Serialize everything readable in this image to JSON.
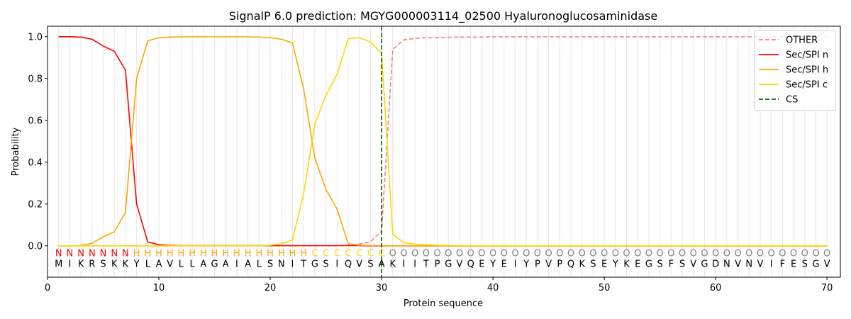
{
  "chart_data": {
    "type": "line",
    "title": "SignalP 6.0 prediction: MGYG000003114_02500 Hyaluronoglucosaminidase",
    "xlabel": "Protein sequence",
    "ylabel": "Probability",
    "xlim": [
      0,
      71.2
    ],
    "ylim": [
      -0.15,
      1.05
    ],
    "xticks": [
      0,
      10,
      20,
      30,
      40,
      50,
      60,
      70
    ],
    "yticks": [
      0.0,
      0.2,
      0.4,
      0.6,
      0.8,
      1.0
    ],
    "grid": "vertical lines at each residue",
    "legend_position": "top-right",
    "sequence": [
      "M",
      "I",
      "K",
      "R",
      "S",
      "K",
      "K",
      "Y",
      "L",
      "A",
      "V",
      "L",
      "L",
      "A",
      "G",
      "A",
      "I",
      "A",
      "L",
      "S",
      "N",
      "I",
      "T",
      "G",
      "S",
      "I",
      "Q",
      "V",
      "S",
      "A",
      "K",
      "I",
      "I",
      "T",
      "P",
      "G",
      "V",
      "Q",
      "E",
      "Y",
      "E",
      "I",
      "Y",
      "P",
      "V",
      "P",
      "Q",
      "K",
      "S",
      "E",
      "Y",
      "K",
      "E",
      "G",
      "S",
      "F",
      "S",
      "V",
      "G",
      "D",
      "N",
      "V",
      "N",
      "V",
      "I",
      "F",
      "E",
      "S",
      "G",
      "V"
    ],
    "labels": [
      "N",
      "N",
      "N",
      "N",
      "N",
      "N",
      "N",
      "H",
      "H",
      "H",
      "H",
      "H",
      "H",
      "H",
      "H",
      "H",
      "H",
      "H",
      "H",
      "H",
      "H",
      "H",
      "H",
      "C",
      "C",
      "C",
      "C",
      "C",
      "C",
      "C",
      "O",
      "O",
      "O",
      "O",
      "O",
      "O",
      "O",
      "O",
      "O",
      "O",
      "O",
      "O",
      "O",
      "O",
      "O",
      "O",
      "O",
      "O",
      "O",
      "O",
      "O",
      "O",
      "O",
      "O",
      "O",
      "O",
      "O",
      "O",
      "O",
      "O",
      "O",
      "O",
      "O",
      "O",
      "O",
      "O",
      "O",
      "O",
      "O",
      "O"
    ],
    "label_colors": {
      "N": "#ff0000",
      "H": "#ffa500",
      "C": "#ffd700",
      "O": "#808080"
    },
    "cleavage_site": 30,
    "series": [
      {
        "name": "OTHER",
        "color": "#f08080",
        "dash": "dashed",
        "values": [
          0,
          0,
          0,
          0,
          0,
          0,
          0,
          0,
          0,
          0,
          0,
          0,
          0,
          0,
          0,
          0,
          0,
          0,
          0,
          0,
          0,
          0,
          0,
          0,
          0,
          0,
          0.003,
          0.008,
          0.02,
          0.07,
          0.94,
          0.985,
          0.992,
          0.995,
          0.996,
          0.997,
          0.998,
          0.998,
          0.998,
          0.999,
          0.999,
          0.999,
          0.999,
          0.999,
          0.999,
          0.999,
          0.999,
          0.999,
          0.999,
          0.999,
          0.999,
          0.999,
          0.999,
          0.999,
          0.999,
          0.999,
          0.999,
          0.999,
          0.999,
          0.999,
          0.999,
          0.999,
          0.999,
          0.999,
          0.999,
          0.999,
          0.999,
          0.999,
          0.999,
          0.999
        ]
      },
      {
        "name": "Sec/SPI n",
        "color": "#ff0000",
        "dash": "solid",
        "values": [
          1.0,
          1.0,
          0.998,
          0.988,
          0.955,
          0.93,
          0.84,
          0.2,
          0.018,
          0.005,
          0.002,
          0.001,
          0.001,
          0.001,
          0.001,
          0.001,
          0.001,
          0.001,
          0.001,
          0.001,
          0.001,
          0.001,
          0.001,
          0.001,
          0.001,
          0.001,
          0.001,
          0.001,
          0,
          0,
          0,
          0,
          0,
          0,
          0,
          0,
          0,
          0,
          0,
          0,
          0,
          0,
          0,
          0,
          0,
          0,
          0,
          0,
          0,
          0,
          0,
          0,
          0,
          0,
          0,
          0,
          0,
          0,
          0,
          0,
          0,
          0,
          0,
          0,
          0,
          0,
          0,
          0,
          0,
          0
        ]
      },
      {
        "name": "Sec/SPI h",
        "color": "#ffa500",
        "dash": "solid",
        "values": [
          0,
          0,
          0.002,
          0.012,
          0.043,
          0.067,
          0.16,
          0.8,
          0.98,
          0.995,
          0.998,
          0.999,
          0.999,
          0.999,
          0.999,
          0.999,
          0.999,
          0.999,
          0.998,
          0.995,
          0.988,
          0.97,
          0.75,
          0.42,
          0.27,
          0.175,
          0.01,
          0.003,
          0.001,
          0.001,
          0,
          0,
          0,
          0,
          0,
          0,
          0,
          0,
          0,
          0,
          0,
          0,
          0,
          0,
          0,
          0,
          0,
          0,
          0,
          0,
          0,
          0,
          0,
          0,
          0,
          0,
          0,
          0,
          0,
          0,
          0,
          0,
          0,
          0,
          0,
          0,
          0,
          0,
          0,
          0
        ]
      },
      {
        "name": "Sec/SPI c",
        "color": "#ffd700",
        "dash": "solid",
        "values": [
          0,
          0,
          0,
          0,
          0,
          0,
          0,
          0,
          0,
          0,
          0,
          0,
          0,
          0,
          0,
          0,
          0,
          0,
          0,
          0.003,
          0.01,
          0.028,
          0.25,
          0.58,
          0.72,
          0.82,
          0.99,
          0.995,
          0.975,
          0.92,
          0.055,
          0.015,
          0.008,
          0.005,
          0.003,
          0.002,
          0.001,
          0.001,
          0,
          0,
          0,
          0,
          0,
          0,
          0,
          0,
          0,
          0,
          0,
          0,
          0,
          0,
          0,
          0,
          0,
          0,
          0,
          0,
          0,
          0,
          0,
          0,
          0,
          0,
          0,
          0,
          0,
          0,
          0,
          0
        ]
      }
    ],
    "legend": [
      {
        "name": "OTHER",
        "color": "#f08080",
        "dash": "dashed"
      },
      {
        "name": "Sec/SPI n",
        "color": "#ff0000",
        "dash": "solid"
      },
      {
        "name": "Sec/SPI h",
        "color": "#ffa500",
        "dash": "solid"
      },
      {
        "name": "Sec/SPI c",
        "color": "#ffd700",
        "dash": "solid"
      },
      {
        "name": "CS",
        "color": "#006400",
        "dash": "dashed"
      }
    ]
  }
}
